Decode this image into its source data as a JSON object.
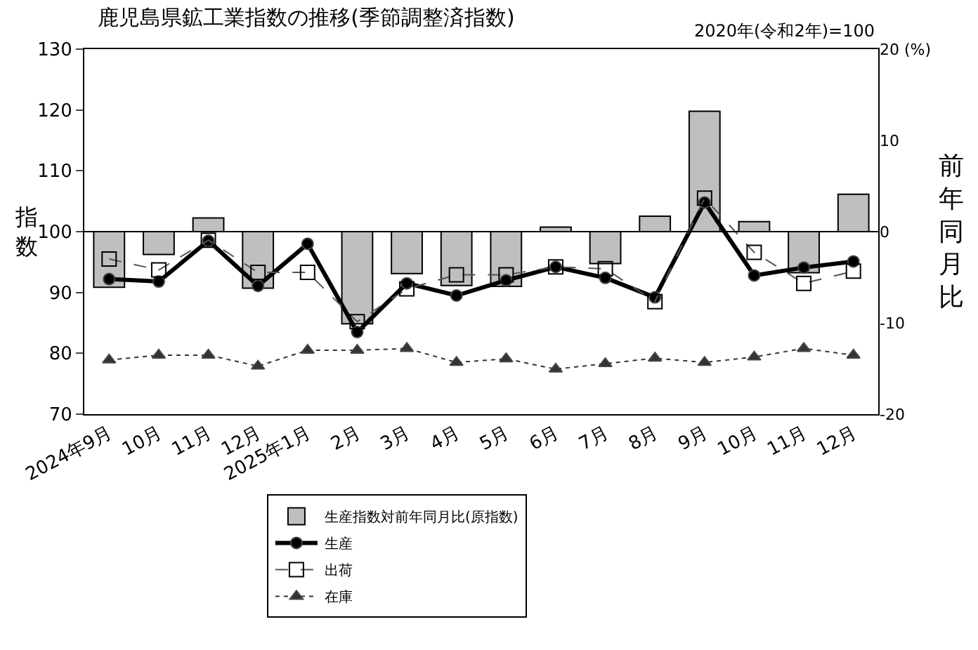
{
  "chart_data": {
    "type": "line",
    "title": "鹿児島県鉱工業指数の推移(季節調整済指数)",
    "annotations": [
      "2020年(令和2年)=100"
    ],
    "ylabel": "指数",
    "y2label": "前年同月比",
    "categories": [
      "2024年9月",
      "10月",
      "11月",
      "12月",
      "2025年1月",
      "2月",
      "3月",
      "4月",
      "5月",
      "6月",
      "7月",
      "8月",
      "9月",
      "10月",
      "11月",
      "12月"
    ],
    "series": [
      {
        "name": "生産指数対前年同月比(原指数)",
        "type": "bar",
        "axis": "y2",
        "color": "#bfbfbf",
        "values": [
          -6.1,
          -2.5,
          1.5,
          -6.2,
          null,
          -10.1,
          -4.6,
          -5.9,
          -6.0,
          0.5,
          -3.5,
          1.7,
          13.2,
          1.1,
          -4.5,
          4.1
        ]
      },
      {
        "name": "生産",
        "color": "#000000",
        "marker": "circle",
        "line_style": "solid",
        "values": [
          92.2,
          91.8,
          98.5,
          91.1,
          98.0,
          83.5,
          91.5,
          89.5,
          92.0,
          94.2,
          92.4,
          89.2,
          104.8,
          92.8,
          94.1,
          95.1
        ]
      },
      {
        "name": "出荷",
        "color": "#555555",
        "marker": "square",
        "line_style": "dashed",
        "values": [
          95.5,
          93.7,
          98.6,
          93.3,
          93.3,
          85.2,
          90.6,
          92.9,
          92.9,
          94.2,
          93.9,
          88.5,
          105.5,
          96.6,
          91.5,
          93.5
        ]
      },
      {
        "name": "在庫",
        "color": "#333333",
        "marker": "triangle",
        "line_style": "dotted",
        "values": [
          78.9,
          79.7,
          79.7,
          77.9,
          80.5,
          80.5,
          80.8,
          78.5,
          79.1,
          77.4,
          78.3,
          79.2,
          78.5,
          79.4,
          80.8,
          79.7
        ]
      }
    ],
    "ylim": [
      70,
      130
    ],
    "yticks": [
      70,
      80,
      90,
      100,
      110,
      120,
      130
    ],
    "y2lim": [
      -20,
      20
    ],
    "y2ticks": [
      -20,
      -10,
      0,
      10,
      {
        "value": 20,
        "label": "20 (%)"
      }
    ],
    "ref_lines": [
      {
        "axis": "y2",
        "value": 0,
        "color": "#000000",
        "line_style": "solid"
      }
    ],
    "grid": false,
    "legend": "bottom"
  }
}
